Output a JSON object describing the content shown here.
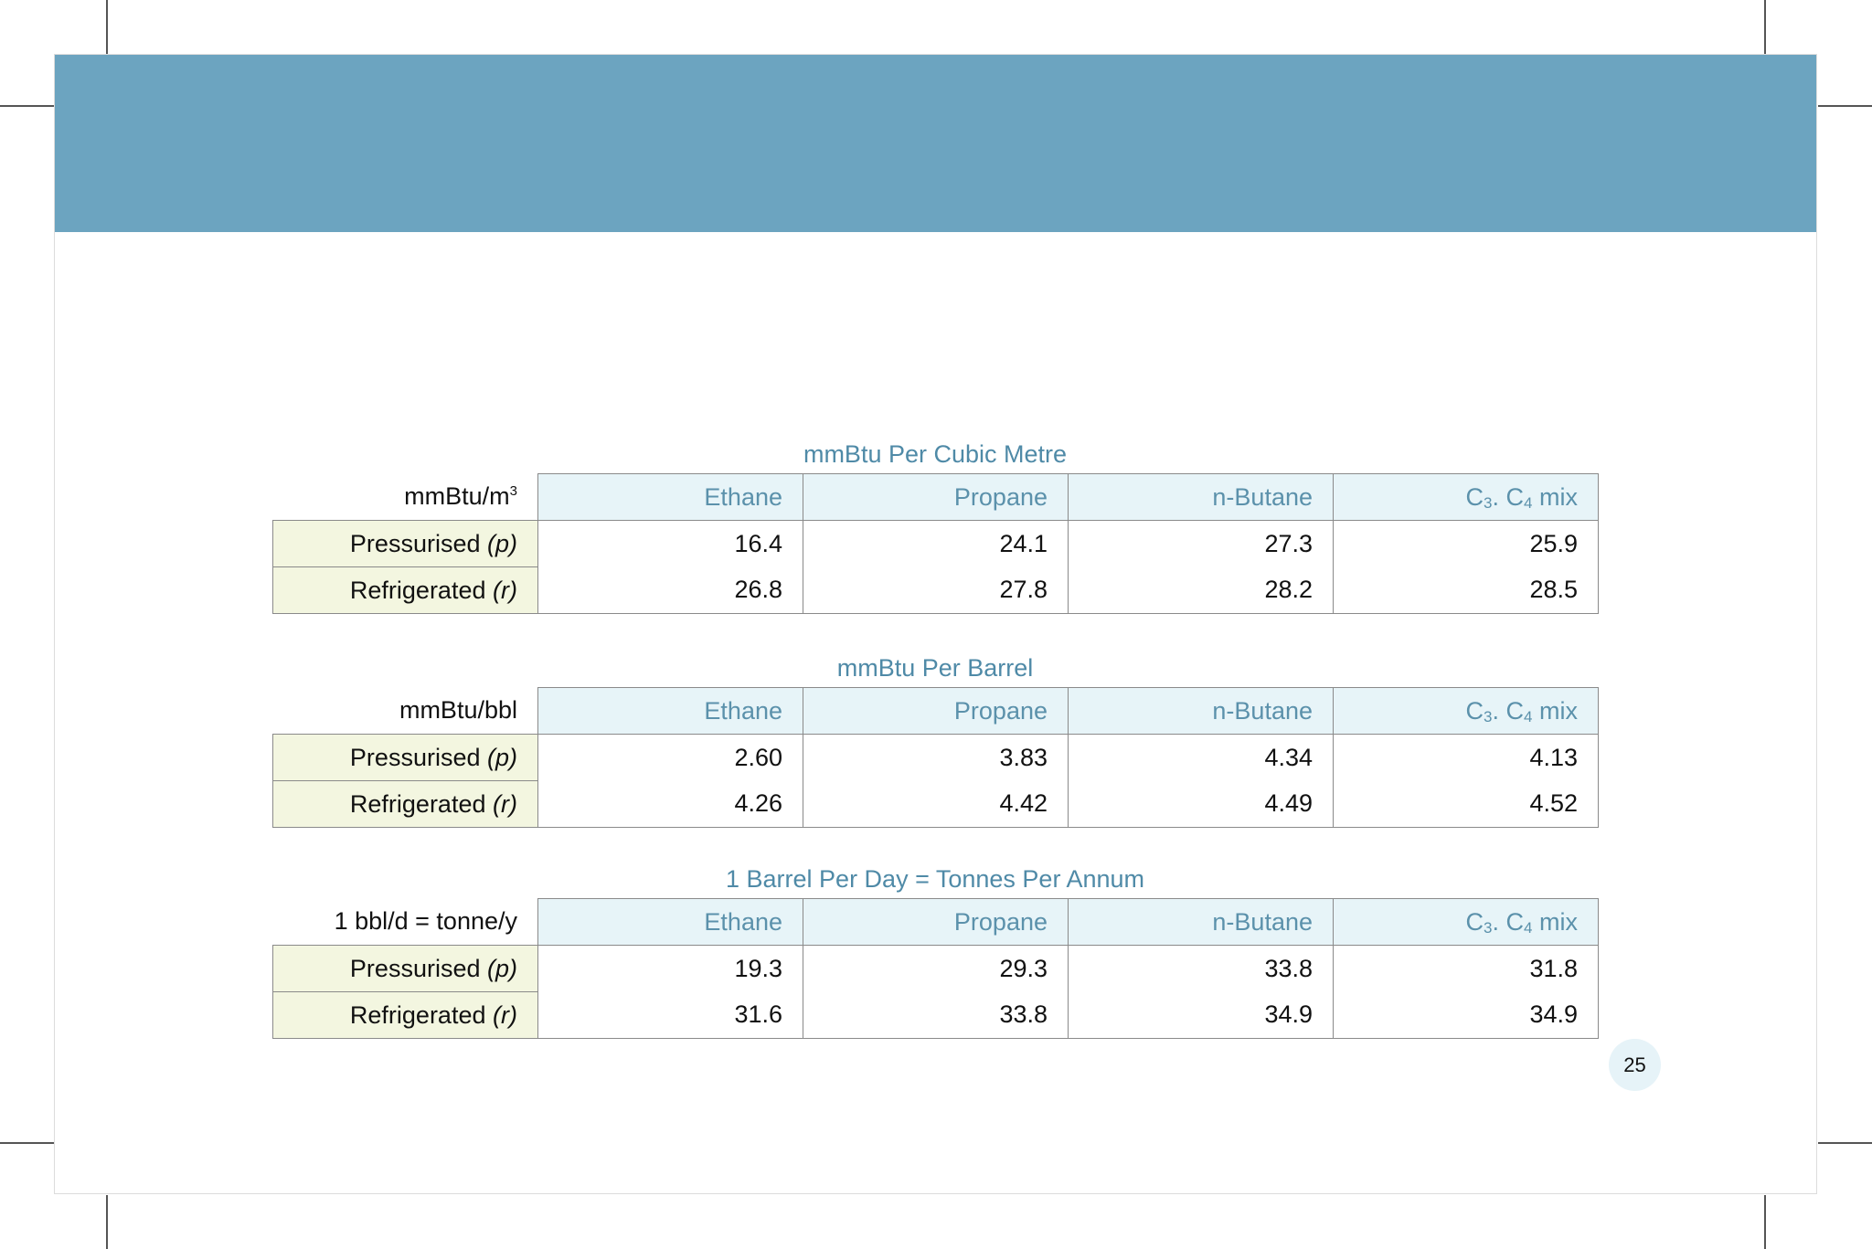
{
  "tables": [
    {
      "title": "mmBtu Per Cubic Metre",
      "unit_base": "mmBtu/m",
      "unit_sup": "3",
      "columns": [
        "Ethane",
        "Propane",
        "n-Butane"
      ],
      "mix": {
        "c": "C",
        "s1": "3",
        "sep": ". C",
        "s2": "4",
        "suffix": " mix"
      },
      "rows": [
        {
          "label": "Pressurised",
          "mode": "(p)",
          "values": [
            "16.4",
            "24.1",
            "27.3",
            "25.9"
          ]
        },
        {
          "label": "Refrigerated",
          "mode": "(r)",
          "values": [
            "26.8",
            "27.8",
            "28.2",
            "28.5"
          ]
        }
      ]
    },
    {
      "title": "mmBtu Per Barrel",
      "unit": "mmBtu/bbl",
      "columns": [
        "Ethane",
        "Propane",
        "n-Butane"
      ],
      "mix": {
        "c": "C",
        "s1": "3",
        "sep": ". C",
        "s2": "4",
        "suffix": " mix"
      },
      "rows": [
        {
          "label": "Pressurised",
          "mode": "(p)",
          "values": [
            "2.60",
            "3.83",
            "4.34",
            "4.13"
          ]
        },
        {
          "label": "Refrigerated",
          "mode": "(r)",
          "values": [
            "4.26",
            "4.42",
            "4.49",
            "4.52"
          ]
        }
      ]
    },
    {
      "title": "1 Barrel Per Day = Tonnes Per Annum",
      "unit": "1 bbl/d = tonne/y",
      "columns": [
        "Ethane",
        "Propane",
        "n-Butane"
      ],
      "mix": {
        "c": "C",
        "s1": "3",
        "sep": ". C",
        "s2": "4",
        "suffix": " mix"
      },
      "rows": [
        {
          "label": "Pressurised",
          "mode": "(p)",
          "values": [
            "19.3",
            "29.3",
            "33.8",
            "31.8"
          ]
        },
        {
          "label": "Refrigerated",
          "mode": "(r)",
          "values": [
            "31.6",
            "33.8",
            "34.9",
            "34.9"
          ]
        }
      ]
    }
  ],
  "page_number": "25",
  "colors": {
    "header_band": "#6ca4c0",
    "title_text": "#4f8aa7",
    "column_header_bg": "#e7f4f8",
    "row_header_bg": "#f3f6e0"
  }
}
